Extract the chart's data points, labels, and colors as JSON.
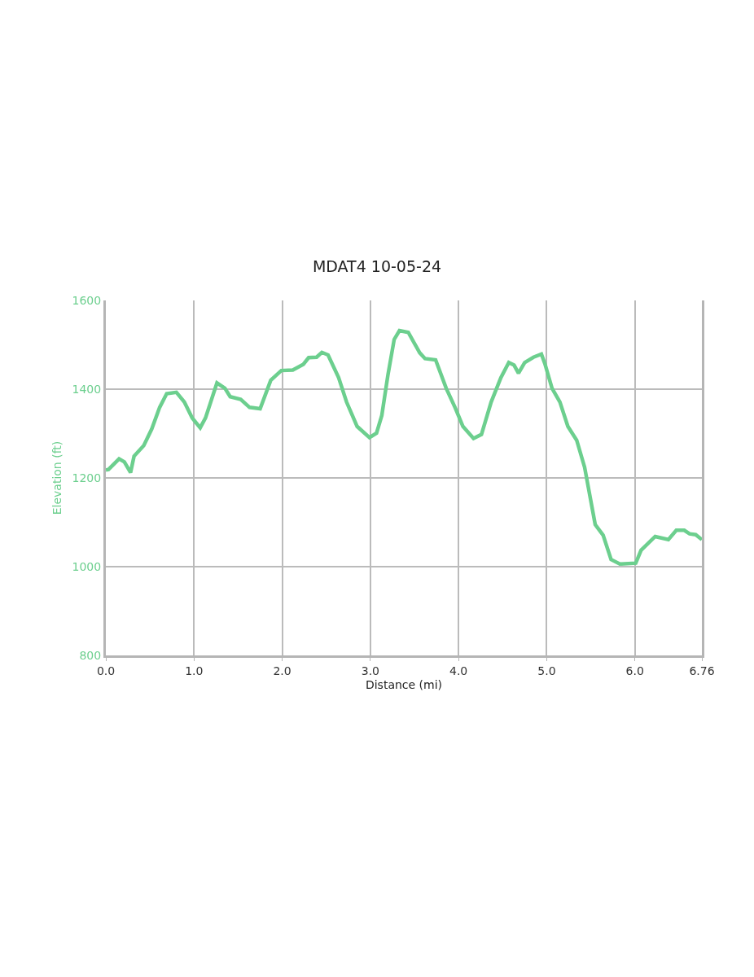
{
  "chart_data": {
    "type": "line",
    "title": "MDAT4 10-05-24",
    "xlabel": "Distance (mi)",
    "ylabel": "Elevation (ft)",
    "series": [
      {
        "color": "#6ccf8e",
        "x": [
          0,
          0.03,
          0.15,
          0.21,
          0.28,
          0.32,
          0.43,
          0.52,
          0.61,
          0.69,
          0.8,
          0.89,
          0.98,
          1.07,
          1.13,
          1.26,
          1.35,
          1.41,
          1.53,
          1.63,
          1.75,
          1.87,
          1.99,
          2.12,
          2.24,
          2.3,
          2.39,
          2.45,
          2.52,
          2.64,
          2.73,
          2.85,
          2.99,
          3.07,
          3.13,
          3.2,
          3.27,
          3.33,
          3.43,
          3.56,
          3.62,
          3.74,
          3.86,
          3.96,
          4.05,
          4.17,
          4.26,
          4.37,
          4.48,
          4.57,
          4.63,
          4.68,
          4.75,
          4.85,
          4.94,
          4.98,
          5.06,
          5.15,
          5.24,
          5.34,
          5.43,
          5.55,
          5.64,
          5.73,
          5.83,
          6.01,
          6.07,
          6.23,
          6.38,
          6.47,
          6.56,
          6.62,
          6.69,
          6.76
        ],
        "values": [
          1218,
          1219,
          1243,
          1236,
          1212,
          1249,
          1273,
          1310,
          1359,
          1390,
          1393,
          1371,
          1335,
          1313,
          1335,
          1414,
          1402,
          1383,
          1377,
          1359,
          1356,
          1420,
          1442,
          1443,
          1456,
          1471,
          1472,
          1483,
          1477,
          1426,
          1371,
          1316,
          1291,
          1301,
          1341,
          1433,
          1512,
          1532,
          1528,
          1482,
          1469,
          1466,
          1402,
          1359,
          1316,
          1289,
          1298,
          1371,
          1426,
          1460,
          1454,
          1436,
          1460,
          1472,
          1479,
          1457,
          1402,
          1371,
          1316,
          1285,
          1224,
          1095,
          1071,
          1016,
          1006,
          1008,
          1037,
          1068,
          1061,
          1082,
          1082,
          1074,
          1072,
          1061
        ]
      }
    ],
    "xlim": [
      0,
      6.76
    ],
    "xticks": [
      {
        "value": 0,
        "label": "0.0"
      },
      {
        "value": 1,
        "label": "1.0"
      },
      {
        "value": 2,
        "label": "2.0"
      },
      {
        "value": 3,
        "label": "3.0"
      },
      {
        "value": 4,
        "label": "4.0"
      },
      {
        "value": 5,
        "label": "5.0"
      },
      {
        "value": 6,
        "label": "6.0"
      },
      6.76
    ],
    "ylim": [
      800,
      1600
    ],
    "yticks": [
      800,
      1000,
      1200,
      1400,
      1600
    ],
    "grid": true,
    "marker": "none",
    "line_style": "solid"
  }
}
